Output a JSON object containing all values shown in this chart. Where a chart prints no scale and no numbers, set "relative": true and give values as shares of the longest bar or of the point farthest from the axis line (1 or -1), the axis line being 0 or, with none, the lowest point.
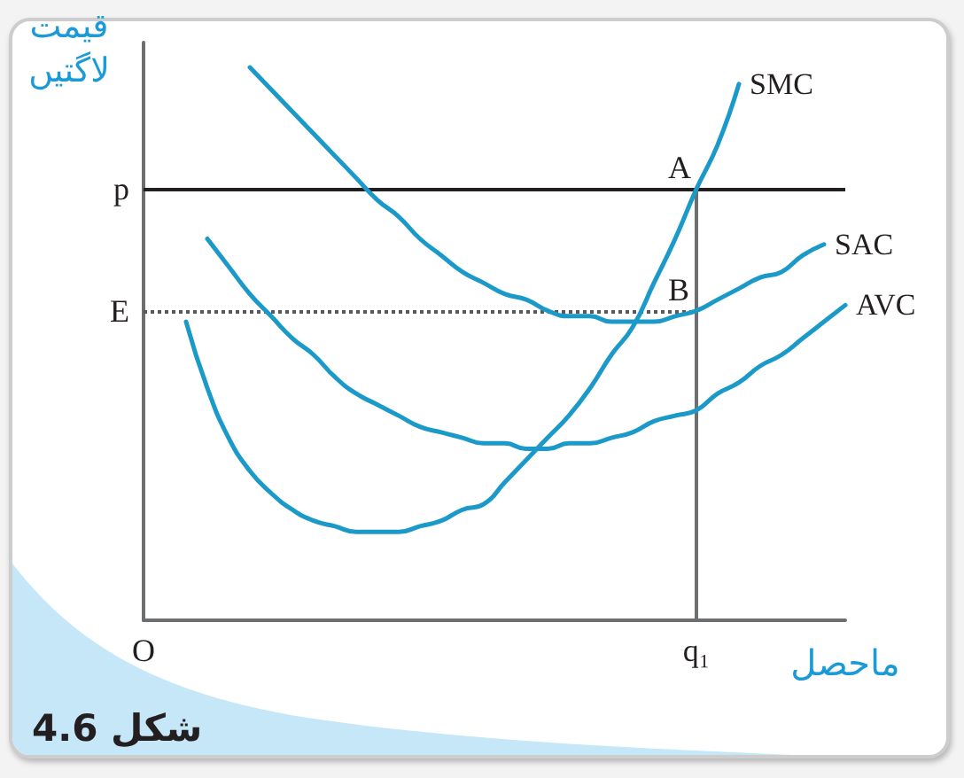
{
  "chart_data": {
    "type": "line",
    "relative": true,
    "xlabel": "ماحصل",
    "ylabel": "قیمت لاگتیں",
    "categories": [
      "O",
      null,
      null,
      null,
      null,
      null,
      null,
      null,
      null,
      null,
      null,
      null,
      null,
      null,
      null,
      null,
      null,
      null,
      null,
      null,
      null,
      null,
      null,
      null,
      null,
      null,
      "q₁",
      null,
      null,
      null,
      null,
      null,
      null,
      null
    ],
    "series": [
      {
        "name": "SMC",
        "color": "#1b9ac9",
        "values": [
          null,
          null,
          0.54,
          0.42,
          0.33,
          0.27,
          0.23,
          0.2,
          0.18,
          0.17,
          0.16,
          0.16,
          0.16,
          0.17,
          0.18,
          0.2,
          0.21,
          0.25,
          0.29,
          0.33,
          0.37,
          0.42,
          0.48,
          0.53,
          0.61,
          0.69,
          0.78,
          0.86,
          0.97,
          null,
          null,
          null,
          null,
          null
        ]
      },
      {
        "name": "SAC",
        "color": "#1b9ac9",
        "values": [
          null,
          null,
          null,
          null,
          null,
          1.0,
          0.96,
          0.92,
          0.88,
          0.84,
          0.8,
          0.76,
          0.73,
          0.69,
          0.66,
          0.63,
          0.61,
          0.59,
          0.58,
          0.56,
          0.55,
          0.55,
          0.54,
          0.54,
          0.54,
          0.55,
          0.56,
          0.58,
          0.6,
          0.62,
          0.63,
          0.66,
          0.68,
          null
        ]
      },
      {
        "name": "AVC",
        "color": "#1b9ac9",
        "values": [
          null,
          null,
          null,
          0.69,
          0.64,
          0.59,
          0.55,
          0.51,
          0.48,
          0.44,
          0.41,
          0.39,
          0.37,
          0.35,
          0.34,
          0.33,
          0.32,
          0.32,
          0.31,
          0.31,
          0.32,
          0.32,
          0.33,
          0.34,
          0.36,
          0.37,
          0.38,
          0.41,
          0.43,
          0.46,
          0.48,
          0.51,
          0.54,
          0.57
        ]
      }
    ],
    "ref_lines": [
      {
        "axis": "y",
        "value": 0.78,
        "label": "p",
        "color": "#231f20"
      },
      {
        "axis": "y",
        "value": 0.56,
        "label": "E",
        "color": "#58595b",
        "line_style": "dotted"
      },
      {
        "axis": "x",
        "value": "q₁",
        "color": "#6d6e70"
      }
    ],
    "annotations": [
      "شکل 4.6",
      {
        "text": "A",
        "x": "q₁",
        "y": 0.78
      },
      {
        "text": "B",
        "x": "q₁",
        "y": 0.56
      }
    ]
  }
}
